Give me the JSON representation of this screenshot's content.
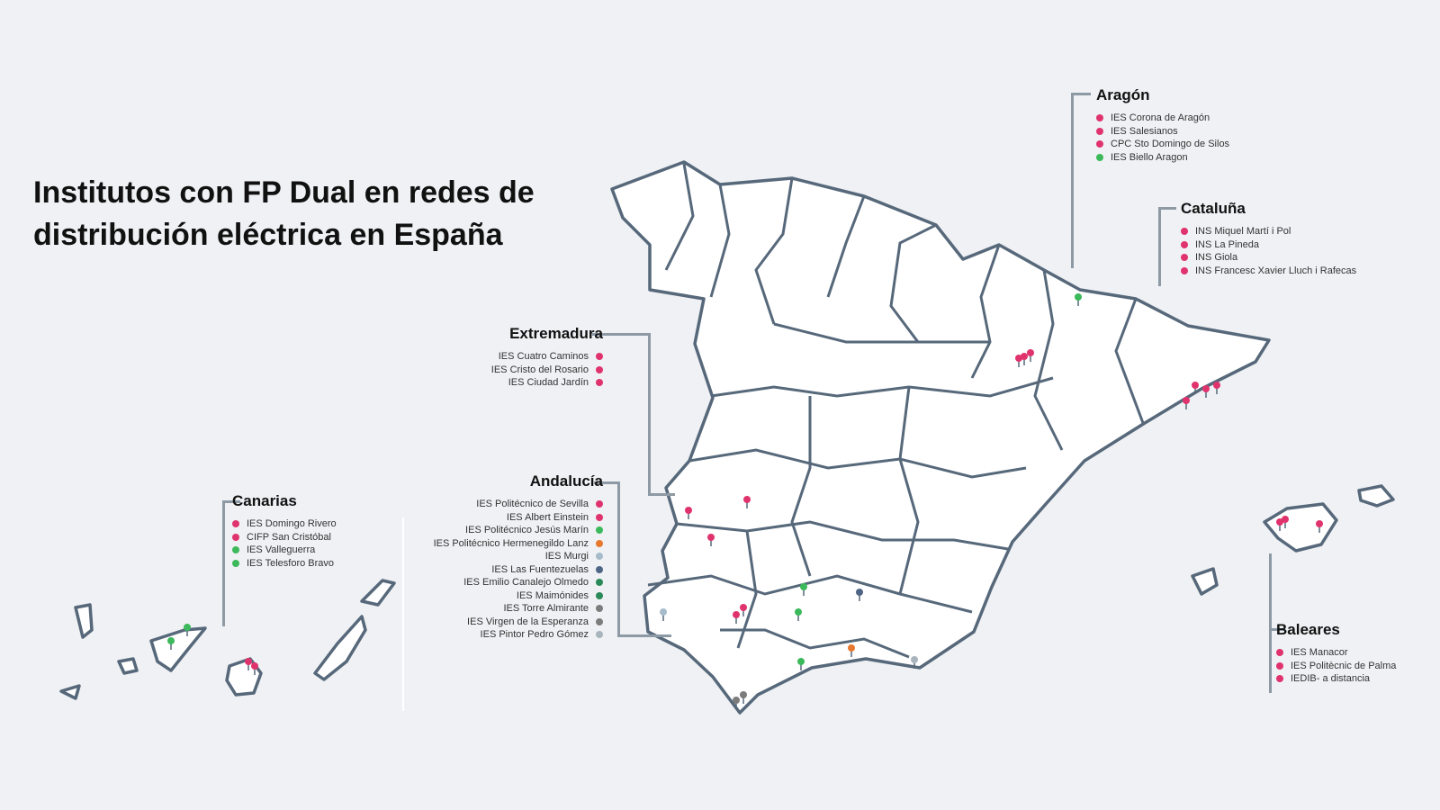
{
  "title": "Institutos con FP Dual en redes de distribución eléctrica en España",
  "colors": {
    "pink": "#e0336e",
    "green": "#3cb95a",
    "orange": "#e8782e",
    "lightblue": "#a6bccb",
    "slate": "#4f6585",
    "darkgreen": "#2b8a59",
    "gray": "#7c7c7c",
    "lightgray": "#a9b5bc",
    "outline": "#56687a"
  },
  "regions": {
    "aragon": {
      "name": "Aragón",
      "items": [
        {
          "label": "IES Corona de Aragón",
          "color": "pink"
        },
        {
          "label": "IES Salesianos",
          "color": "pink"
        },
        {
          "label": "CPC Sto Domingo de Silos",
          "color": "pink"
        },
        {
          "label": "IES Biello Aragon",
          "color": "green"
        }
      ]
    },
    "cataluna": {
      "name": "Cataluña",
      "items": [
        {
          "label": "INS Miquel Martí i Pol",
          "color": "pink"
        },
        {
          "label": "INS La Pineda",
          "color": "pink"
        },
        {
          "label": "INS Giola",
          "color": "pink"
        },
        {
          "label": "INS Francesc Xavier Lluch i Rafecas",
          "color": "pink"
        }
      ]
    },
    "extremadura": {
      "name": "Extremadura",
      "items": [
        {
          "label": "IES Cuatro Caminos",
          "color": "pink"
        },
        {
          "label": "IES Cristo del Rosario",
          "color": "pink"
        },
        {
          "label": "IES Ciudad Jardín",
          "color": "pink"
        }
      ]
    },
    "andalucia": {
      "name": "Andalucía",
      "items": [
        {
          "label": "IES Politécnico de Sevilla",
          "color": "pink"
        },
        {
          "label": "IES Albert Einstein",
          "color": "pink"
        },
        {
          "label": "IES Politécnico Jesús Marín",
          "color": "green"
        },
        {
          "label": "IES Politécnico Hermenegildo Lanz",
          "color": "orange"
        },
        {
          "label": "IES Murgi",
          "color": "lightblue"
        },
        {
          "label": "IES Las Fuentezuelas",
          "color": "slate"
        },
        {
          "label": "IES Emilio Canalejo Olmedo",
          "color": "darkgreen"
        },
        {
          "label": "IES Maimónides",
          "color": "darkgreen"
        },
        {
          "label": "IES Torre Almirante",
          "color": "gray"
        },
        {
          "label": "IES Virgen de la Esperanza",
          "color": "gray"
        },
        {
          "label": "IES Pintor Pedro Gómez",
          "color": "lightgray"
        }
      ]
    },
    "canarias": {
      "name": "Canarias",
      "items": [
        {
          "label": "IES Domingo Rivero",
          "color": "pink"
        },
        {
          "label": "CIFP San Cristóbal",
          "color": "pink"
        },
        {
          "label": "IES Valleguerra",
          "color": "green"
        },
        {
          "label": "IES Telesforo Bravo",
          "color": "green"
        }
      ]
    },
    "baleares": {
      "name": "Baleares",
      "items": [
        {
          "label": "IES Manacor",
          "color": "pink"
        },
        {
          "label": "IES Politècnic de Palma",
          "color": "pink"
        },
        {
          "label": "IEDIB- a distancia",
          "color": "pink"
        }
      ]
    }
  }
}
